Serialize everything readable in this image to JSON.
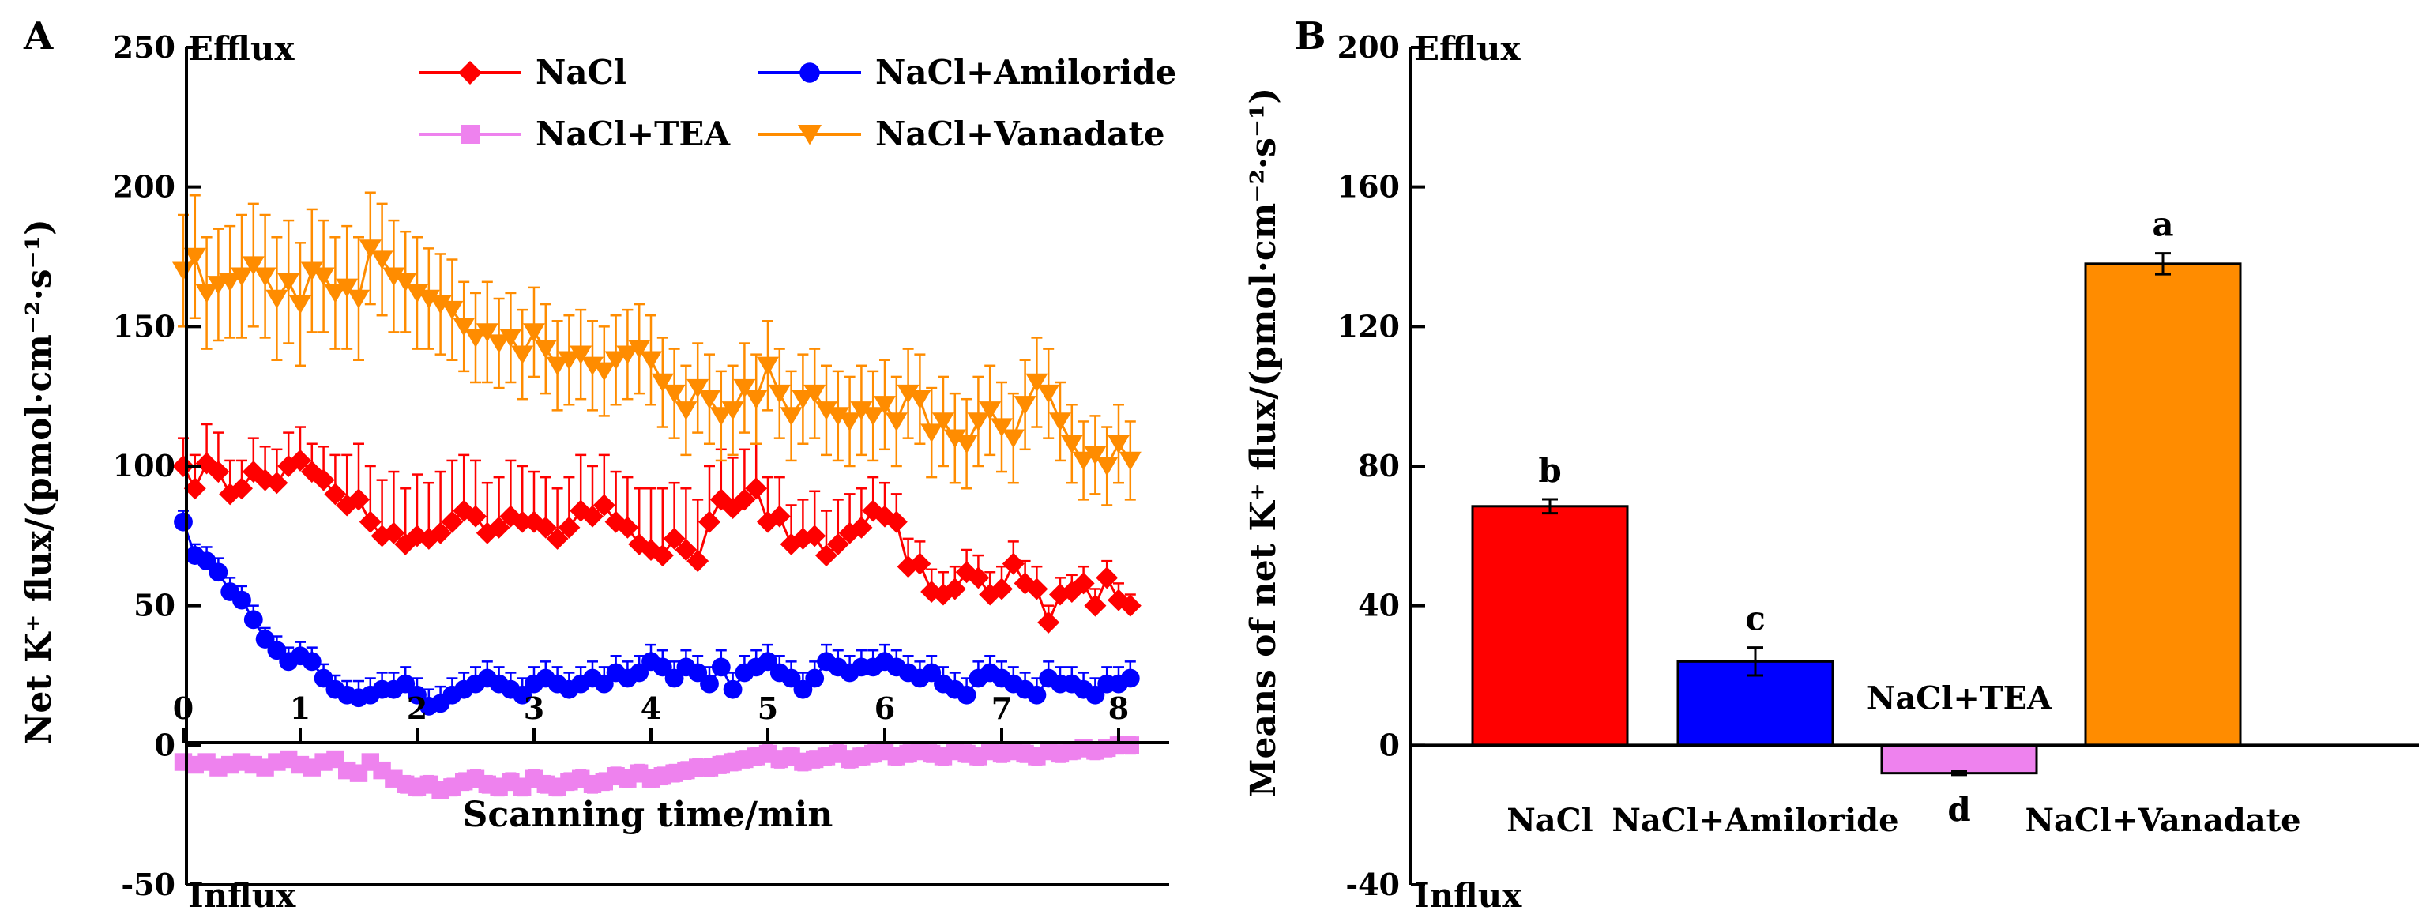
{
  "chart_data": [
    {
      "panel": "A",
      "type": "line",
      "title": "",
      "xlabel": "Scanning time/min",
      "ylabel": "Net K⁺ flux/(pmol·cm⁻²·s⁻¹)",
      "xlim": [
        0,
        8
      ],
      "ylim": [
        -50,
        250
      ],
      "xticks": [
        "0",
        "1",
        "2",
        "3",
        "4",
        "5",
        "6",
        "7",
        "8"
      ],
      "yticks": [
        "-50",
        "0",
        "50",
        "100",
        "150",
        "200",
        "250"
      ],
      "annotations": {
        "top": "Efflux",
        "bottom": "Influx"
      },
      "x_start": 0,
      "x_step": 0.1,
      "series": [
        {
          "name": "NaCl",
          "color": "#ff0000",
          "marker": "diamond",
          "err_up_only": true,
          "values": [
            100,
            92,
            101,
            98,
            90,
            92,
            98,
            95,
            94,
            100,
            102,
            98,
            95,
            90,
            86,
            88,
            80,
            75,
            76,
            72,
            75,
            74,
            76,
            80,
            84,
            82,
            76,
            78,
            82,
            80,
            80,
            78,
            74,
            78,
            84,
            82,
            86,
            80,
            78,
            72,
            70,
            68,
            74,
            70,
            66,
            80,
            88,
            85,
            88,
            92,
            80,
            82,
            72,
            74,
            75,
            68,
            72,
            76,
            78,
            84,
            82,
            80,
            64,
            65,
            55,
            54,
            56,
            62,
            60,
            54,
            56,
            65,
            58,
            56,
            44,
            54,
            55,
            58,
            50,
            60,
            52,
            50
          ],
          "errors": [
            10,
            12,
            14,
            14,
            12,
            10,
            12,
            12,
            12,
            12,
            12,
            10,
            12,
            14,
            18,
            20,
            20,
            20,
            22,
            20,
            22,
            20,
            22,
            22,
            20,
            20,
            18,
            18,
            20,
            20,
            18,
            18,
            18,
            18,
            20,
            18,
            18,
            18,
            18,
            20,
            22,
            24,
            20,
            22,
            22,
            20,
            18,
            18,
            18,
            16,
            16,
            14,
            14,
            14,
            16,
            16,
            16,
            14,
            14,
            12,
            12,
            10,
            10,
            8,
            8,
            8,
            8,
            8,
            8,
            8,
            8,
            8,
            8,
            8,
            6,
            6,
            6,
            6,
            6,
            6,
            6,
            4
          ]
        },
        {
          "name": "NaCl+Amiloride",
          "color": "#0000ff",
          "marker": "circle",
          "err_up_only": true,
          "values": [
            80,
            68,
            66,
            62,
            55,
            52,
            45,
            38,
            34,
            30,
            32,
            30,
            24,
            20,
            18,
            17,
            18,
            20,
            20,
            22,
            18,
            14,
            15,
            18,
            20,
            22,
            24,
            22,
            20,
            18,
            22,
            24,
            22,
            20,
            22,
            24,
            22,
            26,
            24,
            26,
            30,
            28,
            24,
            28,
            26,
            22,
            28,
            20,
            26,
            28,
            30,
            26,
            24,
            20,
            24,
            30,
            28,
            26,
            28,
            28,
            30,
            28,
            26,
            24,
            26,
            22,
            20,
            18,
            24,
            26,
            24,
            22,
            20,
            18,
            24,
            22,
            22,
            20,
            18,
            22,
            22,
            24
          ],
          "errors": [
            4,
            4,
            5,
            5,
            5,
            5,
            5,
            4,
            5,
            5,
            5,
            5,
            5,
            5,
            5,
            6,
            6,
            6,
            6,
            6,
            6,
            6,
            6,
            6,
            6,
            6,
            6,
            6,
            6,
            6,
            6,
            6,
            6,
            6,
            6,
            6,
            6,
            6,
            6,
            6,
            6,
            6,
            6,
            6,
            6,
            6,
            6,
            6,
            6,
            6,
            6,
            6,
            6,
            6,
            6,
            6,
            6,
            6,
            6,
            6,
            6,
            6,
            6,
            6,
            6,
            6,
            6,
            6,
            6,
            6,
            6,
            6,
            6,
            6,
            6,
            6,
            6,
            6,
            6,
            6,
            6,
            6
          ]
        },
        {
          "name": "NaCl+TEA",
          "color": "#ee82ee",
          "marker": "square",
          "err_up_only": false,
          "values": [
            -6,
            -7,
            -6,
            -8,
            -7,
            -6,
            -7,
            -8,
            -6,
            -5,
            -7,
            -8,
            -6,
            -5,
            -9,
            -10,
            -6,
            -9,
            -12,
            -14,
            -15,
            -14,
            -16,
            -15,
            -13,
            -12,
            -14,
            -15,
            -13,
            -15,
            -12,
            -14,
            -15,
            -13,
            -12,
            -14,
            -13,
            -11,
            -12,
            -10,
            -12,
            -11,
            -10,
            -9,
            -8,
            -8,
            -7,
            -6,
            -5,
            -4,
            -3,
            -5,
            -4,
            -6,
            -5,
            -4,
            -3,
            -5,
            -4,
            -3,
            -2,
            -4,
            -3,
            -2,
            -3,
            -4,
            -2,
            -3,
            -4,
            -2,
            -3,
            -2,
            -3,
            -4,
            -2,
            -3,
            -2,
            -1,
            -2,
            -1,
            0,
            0
          ],
          "errors": [
            2,
            2,
            2,
            2,
            2,
            2,
            2,
            2,
            2,
            2,
            2,
            2,
            2,
            2,
            2,
            2,
            2,
            2,
            2,
            3,
            3,
            3,
            3,
            3,
            3,
            3,
            3,
            3,
            3,
            3,
            3,
            3,
            3,
            3,
            3,
            3,
            3,
            3,
            3,
            3,
            3,
            3,
            3,
            3,
            3,
            3,
            3,
            3,
            3,
            3,
            3,
            3,
            3,
            3,
            3,
            3,
            3,
            3,
            3,
            3,
            3,
            3,
            3,
            3,
            3,
            3,
            3,
            3,
            3,
            3,
            3,
            3,
            3,
            3,
            3,
            3,
            3,
            3,
            3,
            3,
            3,
            3
          ]
        },
        {
          "name": "NaCl+Vanadate",
          "color": "#ff8c00",
          "marker": "triangle-down",
          "err_up_only": false,
          "values": [
            170,
            175,
            162,
            165,
            166,
            168,
            172,
            168,
            160,
            166,
            158,
            170,
            168,
            162,
            164,
            160,
            178,
            174,
            168,
            166,
            162,
            160,
            158,
            156,
            150,
            146,
            148,
            144,
            146,
            140,
            148,
            142,
            136,
            138,
            140,
            136,
            134,
            138,
            140,
            142,
            138,
            130,
            126,
            120,
            128,
            124,
            118,
            120,
            128,
            124,
            136,
            126,
            118,
            124,
            126,
            120,
            118,
            116,
            120,
            118,
            122,
            116,
            126,
            124,
            112,
            116,
            110,
            108,
            116,
            120,
            114,
            110,
            122,
            130,
            126,
            116,
            108,
            102,
            104,
            100,
            108,
            102
          ],
          "errors": [
            20,
            22,
            20,
            20,
            20,
            22,
            22,
            22,
            22,
            22,
            22,
            22,
            20,
            20,
            22,
            22,
            20,
            20,
            20,
            18,
            20,
            18,
            18,
            18,
            16,
            16,
            18,
            16,
            16,
            16,
            16,
            16,
            16,
            16,
            16,
            16,
            16,
            16,
            16,
            16,
            16,
            16,
            16,
            16,
            16,
            16,
            16,
            16,
            16,
            16,
            16,
            16,
            16,
            16,
            16,
            16,
            16,
            16,
            16,
            16,
            16,
            16,
            16,
            16,
            16,
            16,
            16,
            16,
            16,
            16,
            16,
            16,
            16,
            16,
            16,
            14,
            14,
            14,
            14,
            14,
            14,
            14
          ]
        }
      ]
    },
    {
      "panel": "B",
      "type": "bar",
      "title": "",
      "xlabel": "",
      "ylabel": "Means of net K⁺ flux/(pmol·cm⁻²·s⁻¹)",
      "ylim": [
        -40,
        200
      ],
      "yticks": [
        "-40",
        "0",
        "40",
        "80",
        "120",
        "160",
        "200"
      ],
      "annotations": {
        "top": "Efflux",
        "bottom": "Influx"
      },
      "categories": [
        "NaCl",
        "NaCl+Amiloride",
        "NaCl+TEA",
        "NaCl+Vanadate"
      ],
      "values": [
        68.5,
        24,
        -8,
        138
      ],
      "errors": [
        2,
        4,
        0.5,
        3
      ],
      "colors": [
        "#ff0000",
        "#0000ff",
        "#ee82ee",
        "#ff8c00"
      ],
      "significance_letters": [
        "b",
        "c",
        "d",
        "a"
      ]
    }
  ],
  "figure": {
    "panel_a_label": "A",
    "panel_b_label": "B"
  }
}
